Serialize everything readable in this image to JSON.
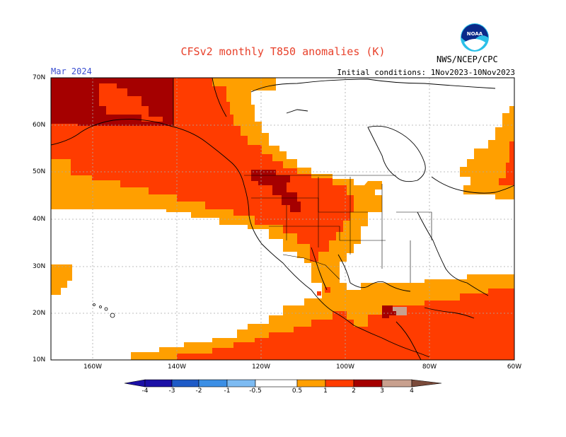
{
  "header": {
    "title": "CFSv2 monthly T850 anomalies (K)",
    "month": "Mar 2024",
    "initial_conditions": "Initial conditions: 1Nov2023-10Nov2023",
    "agency": "NWS/NCEP/CPC",
    "logo_text": "NOAA"
  },
  "axes": {
    "lat_labels": [
      "70N",
      "60N",
      "50N",
      "40N",
      "30N",
      "20N",
      "10N"
    ],
    "lon_labels": [
      "160W",
      "140W",
      "120W",
      "100W",
      "80W",
      "60W"
    ]
  },
  "colorbar": {
    "labels": [
      "-4",
      "-3",
      "-2",
      "-1",
      "-0.5",
      "0.5",
      "1",
      "2",
      "3",
      "4"
    ],
    "colors": [
      "#1c10a6",
      "#1f5bc7",
      "#3c8fe5",
      "#7dbbf2",
      "#ffffff",
      "#ff9f00",
      "#ff3c00",
      "#a50000",
      "#c8a08e",
      "#7a4a3a"
    ]
  },
  "map_colors": {
    "orange": "#ff9f00",
    "red_orange": "#ff3c00",
    "dark_red": "#a50000",
    "grid": "#aaaaaa"
  }
}
